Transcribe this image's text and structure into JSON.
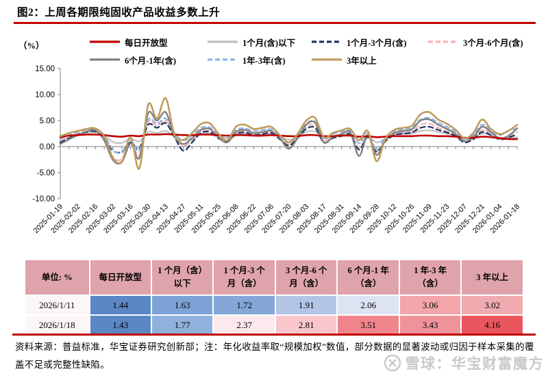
{
  "title": "图2：上周各期限纯固收产品收益多数上升",
  "unit_label": "（%）",
  "legend": {
    "rows": [
      [
        0,
        1,
        2,
        3
      ],
      [
        4,
        5,
        6
      ]
    ],
    "row1_widths": [
      172,
      152,
      170,
      160
    ],
    "row2_widths": [
      172,
      152,
      170
    ]
  },
  "chart_data": {
    "type": "line",
    "title": "上周各期限纯固收产品收益多数上升",
    "ylabel": "（%）",
    "ylim": [
      -10,
      15
    ],
    "ytick_labels": [
      "15.00",
      "10.00",
      "5.00",
      "0.00",
      "-5.00",
      "-10.00"
    ],
    "yticks": [
      15,
      10,
      5,
      0,
      -5,
      -10
    ],
    "grid": false,
    "x_start": "2025-01-19",
    "x_step": "weekly",
    "x_labels": [
      "2025-01-19",
      "2025-02-02",
      "2025-02-16",
      "2025-03-02",
      "2025-03-16",
      "2025-03-30",
      "2025-04-13",
      "2025-04-27",
      "2025-05-11",
      "2025-05-25",
      "2025-06-08",
      "2025-06-22",
      "2025-07-06",
      "2025-07-20",
      "2025-08-03",
      "2025-08-17",
      "2025-08-31",
      "2025-09-14",
      "2025-09-28",
      "2025-10-12",
      "2025-10-26",
      "2025-11-09",
      "2025-11-23",
      "2025-12-07",
      "2025-12-21",
      "2026-01-04",
      "2026-01-18"
    ],
    "series": [
      {
        "name": "每日开放型",
        "color": "#c00000",
        "dash": null,
        "width": 2.6,
        "values": [
          1.8,
          2.1,
          2.2,
          2.3,
          2.3,
          2.2,
          2.0,
          1.9,
          2.1,
          2.0,
          2.3,
          2.3,
          2.4,
          2.3,
          2.2,
          2.2,
          2.3,
          2.3,
          2.2,
          2.1,
          2.2,
          2.2,
          2.1,
          2.1,
          2.2,
          2.1,
          2.0,
          2.0,
          2.2,
          2.2,
          2.0,
          2.0,
          2.1,
          2.1,
          1.9,
          2.0,
          1.8,
          1.9,
          2.0,
          2.0,
          2.0,
          2.1,
          2.1,
          2.0,
          2.0,
          1.9,
          1.7,
          1.7,
          1.9,
          1.8,
          1.6,
          1.44,
          1.43
        ]
      },
      {
        "name": "1个月(含)以下",
        "color": "#bfbfbf",
        "dash": null,
        "width": 2.2,
        "values": [
          1.2,
          1.8,
          2.2,
          2.6,
          2.7,
          2.2,
          0.9,
          0.7,
          1.5,
          1.0,
          2.8,
          2.6,
          3.0,
          2.0,
          1.2,
          1.6,
          2.4,
          2.5,
          2.0,
          1.7,
          2.3,
          2.5,
          2.2,
          2.3,
          2.4,
          1.9,
          1.3,
          1.8,
          2.8,
          2.9,
          1.6,
          2.0,
          2.2,
          2.3,
          1.2,
          2.0,
          0.8,
          1.5,
          2.2,
          2.4,
          2.5,
          3.0,
          3.1,
          2.8,
          2.5,
          2.1,
          1.4,
          1.7,
          2.5,
          2.2,
          1.7,
          1.63,
          1.77
        ]
      },
      {
        "name": "1个月-3个月(含)",
        "color": "#1f3864",
        "dash": "7 5",
        "width": 2.3,
        "values": [
          0.8,
          1.6,
          2.3,
          2.8,
          2.9,
          1.6,
          -0.8,
          -1.0,
          0.8,
          -0.4,
          4.2,
          3.6,
          4.5,
          1.8,
          -0.8,
          0.8,
          2.6,
          2.8,
          1.6,
          1.0,
          2.4,
          2.7,
          2.2,
          2.4,
          2.6,
          1.4,
          0.2,
          1.6,
          3.4,
          3.6,
          0.8,
          1.6,
          2.0,
          2.3,
          -0.6,
          1.8,
          -1.0,
          1.0,
          2.2,
          2.5,
          2.7,
          3.6,
          3.8,
          3.2,
          2.7,
          2.0,
          0.8,
          1.4,
          2.8,
          2.2,
          1.4,
          1.72,
          2.37
        ]
      },
      {
        "name": "3个月-6个月(含)",
        "color": "#f5b2b9",
        "dash": "7 5",
        "width": 2.3,
        "values": [
          1.0,
          1.8,
          2.5,
          3.0,
          3.1,
          1.4,
          -2.0,
          -2.4,
          0.8,
          -1.6,
          4.8,
          4.0,
          5.0,
          2.0,
          0.2,
          1.2,
          2.9,
          3.0,
          1.9,
          1.2,
          2.6,
          2.9,
          2.4,
          2.6,
          2.8,
          1.6,
          0.4,
          1.8,
          3.8,
          4.0,
          1.2,
          1.9,
          2.2,
          2.5,
          -0.2,
          2.0,
          -0.8,
          1.2,
          2.4,
          2.7,
          2.9,
          4.2,
          4.4,
          3.6,
          3.0,
          2.2,
          1.0,
          1.6,
          3.2,
          2.5,
          1.7,
          1.91,
          2.81
        ]
      },
      {
        "name": "6个月-1年(含)",
        "color": "#7f7f7f",
        "dash": null,
        "width": 2.4,
        "values": [
          0.5,
          1.4,
          2.2,
          2.9,
          3.1,
          1.2,
          -2.6,
          -3.0,
          0.6,
          -2.2,
          6.4,
          5.0,
          6.6,
          2.0,
          0.5,
          1.6,
          3.2,
          3.4,
          1.8,
          0.8,
          2.8,
          3.2,
          2.6,
          2.8,
          3.0,
          1.6,
          -0.4,
          1.6,
          4.2,
          4.6,
          0.8,
          1.8,
          2.4,
          2.7,
          -1.8,
          2.2,
          -1.6,
          1.2,
          2.6,
          3.0,
          3.3,
          5.0,
          5.2,
          4.2,
          3.4,
          2.4,
          1.0,
          1.8,
          3.8,
          2.8,
          1.6,
          2.06,
          3.51
        ]
      },
      {
        "name": "1年-3年(含)",
        "color": "#8eb4e3",
        "dash": "6 5",
        "width": 2.3,
        "values": [
          1.5,
          2.2,
          2.8,
          3.3,
          3.4,
          2.2,
          -0.6,
          -1.2,
          1.2,
          -0.8,
          5.2,
          4.4,
          5.4,
          2.6,
          1.2,
          2.2,
          3.6,
          3.7,
          2.4,
          1.6,
          3.2,
          3.5,
          3.0,
          3.2,
          3.3,
          2.2,
          0.8,
          2.2,
          4.4,
          4.8,
          1.6,
          2.4,
          2.8,
          3.0,
          0.6,
          2.6,
          -0.6,
          1.8,
          3.0,
          3.3,
          3.6,
          5.2,
          5.5,
          4.6,
          3.8,
          2.8,
          1.4,
          2.2,
          4.2,
          3.2,
          2.2,
          3.06,
          3.43
        ]
      },
      {
        "name": "3年以上",
        "color": "#bf9d5e",
        "dash": null,
        "width": 2.6,
        "values": [
          2.0,
          2.6,
          3.0,
          3.4,
          3.5,
          2.0,
          -2.2,
          -2.9,
          1.8,
          -4.2,
          8.0,
          5.4,
          9.3,
          2.2,
          1.3,
          2.6,
          4.3,
          4.5,
          2.5,
          1.2,
          3.8,
          4.2,
          3.4,
          3.6,
          3.8,
          2.2,
          0.8,
          2.4,
          5.0,
          5.5,
          1.8,
          2.6,
          3.1,
          3.4,
          1.2,
          3.0,
          -2.8,
          1.5,
          3.2,
          3.6,
          4.0,
          6.2,
          6.6,
          5.2,
          4.4,
          3.2,
          1.6,
          2.6,
          5.2,
          3.4,
          2.4,
          3.02,
          4.16
        ]
      }
    ],
    "draw_order": [
      1,
      3,
      2,
      5,
      4,
      0,
      6
    ],
    "legend_position": "top"
  },
  "table": {
    "corner_label": "单位: %",
    "col_headers": [
      "每日开放型",
      "1 个月（含）\n以下",
      "1 个月-3 个\n月（含）",
      "3 个月-6 个\n月（含）",
      "6 个月-1 年\n（含）",
      "1 年-3 年\n（含）",
      "3 年以上"
    ],
    "rows": [
      {
        "date": "2026/1/11",
        "values": [
          "1.44",
          "1.63",
          "1.72",
          "1.91",
          "2.06",
          "3.06",
          "3.02"
        ],
        "cell_colors": [
          "#5b87c5",
          "#7da3d6",
          "#84a7d8",
          "#b3c5e6",
          "#dde3f3",
          "#f2a6aa",
          "#f0abb0"
        ]
      },
      {
        "date": "2026/1/18",
        "values": [
          "1.43",
          "1.77",
          "2.37",
          "2.81",
          "3.51",
          "3.43",
          "4.16"
        ],
        "cell_colors": [
          "#5b87c5",
          "#8fb2dc",
          "#fce9ed",
          "#f9c6cc",
          "#f1858c",
          "#ef929a",
          "#ea565e"
        ]
      }
    ]
  },
  "footnote": "资料来源：普益标准，华宝证券研究创新部；注：年化收益率取“规模加权”数值，部分数据的显著波动或归因于样本采集的覆盖不足或完整性缺陷。",
  "watermark": {
    "text": "雪球：华宝财富魔方"
  },
  "colors": {
    "accent_rule": "#c00000",
    "table_header_bg": "#dfa4ab",
    "axis": "#7f7f7f",
    "watermark": "#c9c9c9"
  }
}
